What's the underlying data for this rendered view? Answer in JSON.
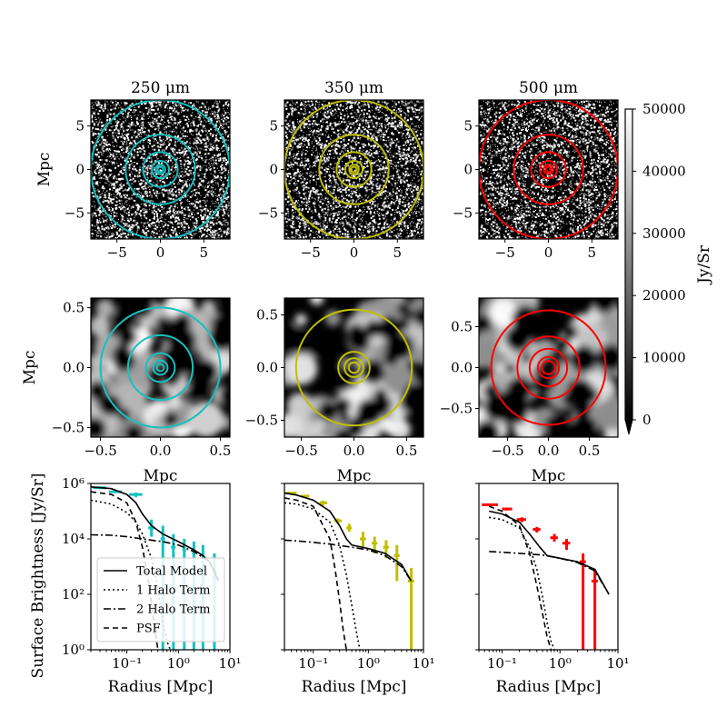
{
  "chart_data": [
    {
      "type": "heatmap",
      "id": "map-250-large",
      "title": "250 μm",
      "xlim": [
        -8,
        8
      ],
      "ylim": [
        -8,
        8
      ],
      "xticks": [
        -5,
        0,
        5
      ],
      "yticks": [
        -5,
        0,
        5
      ],
      "xtick_labels": [
        "−5",
        "0",
        "5"
      ],
      "ytick_labels": [
        "−5",
        "0",
        "5"
      ],
      "ylabel": "Mpc",
      "xlabel": "",
      "ring_color": "#17bfbf",
      "ring_radii_mpc": [
        0.3,
        0.55,
        1.0,
        2.0,
        4.0,
        8.0
      ],
      "texture": "noise-fine"
    },
    {
      "type": "heatmap",
      "id": "map-350-large",
      "title": "350 μm",
      "xlim": [
        -8,
        8
      ],
      "ylim": [
        -8,
        8
      ],
      "xticks": [
        -5,
        0,
        5
      ],
      "yticks": [
        -5,
        0,
        5
      ],
      "xtick_labels": [
        "−5",
        "0",
        "5"
      ],
      "ytick_labels": [
        "−5",
        "0",
        "5"
      ],
      "ylabel": "",
      "xlabel": "",
      "ring_color": "#bfbf00",
      "ring_radii_mpc": [
        0.3,
        0.55,
        1.0,
        2.0,
        4.0,
        8.0
      ],
      "texture": "noise-fine"
    },
    {
      "type": "heatmap",
      "id": "map-500-large",
      "title": "500 μm",
      "xlim": [
        -8,
        8
      ],
      "ylim": [
        -8,
        8
      ],
      "xticks": [
        -5,
        0,
        5
      ],
      "yticks": [
        -5,
        0,
        5
      ],
      "xtick_labels": [
        "−5",
        "0",
        "5"
      ],
      "ytick_labels": [
        "−5",
        "0",
        "5"
      ],
      "ylabel": "",
      "xlabel": "",
      "ring_color": "#ff0000",
      "ring_radii_mpc": [
        0.3,
        0.55,
        1.0,
        2.0,
        4.0,
        8.0
      ],
      "texture": "noise-fine"
    },
    {
      "type": "heatmap",
      "id": "map-250-zoom",
      "title": "",
      "xlim": [
        -0.58,
        0.58
      ],
      "ylim": [
        -0.58,
        0.58
      ],
      "xticks": [
        -0.5,
        0.0,
        0.5
      ],
      "yticks": [
        -0.5,
        0.0,
        0.5
      ],
      "xtick_labels": [
        "−0.5",
        "0.0",
        "0.5"
      ],
      "ytick_labels": [
        "−0.5",
        "0.0",
        "0.5"
      ],
      "ylabel": "Mpc",
      "xlabel": "Mpc",
      "ring_color": "#17bfbf",
      "ring_radii_mpc": [
        0.03,
        0.06,
        0.12,
        0.27,
        0.5
      ],
      "texture": "blobs"
    },
    {
      "type": "heatmap",
      "id": "map-350-zoom",
      "title": "",
      "xlim": [
        -0.66,
        0.66
      ],
      "ylim": [
        -0.66,
        0.66
      ],
      "xticks": [
        -0.5,
        0.0,
        0.5
      ],
      "yticks": [
        -0.5,
        0.0,
        0.5
      ],
      "xtick_labels": [
        "−0.5",
        "0.0",
        "0.5"
      ],
      "ytick_labels": [
        "−0.5",
        "0.0",
        "0.5"
      ],
      "ylabel": "",
      "xlabel": "Mpc",
      "ring_color": "#bfbf00",
      "ring_radii_mpc": [
        0.05,
        0.09,
        0.15,
        0.55
      ],
      "texture": "blobs"
    },
    {
      "type": "heatmap",
      "id": "map-500-zoom",
      "title": "",
      "xlim": [
        -0.85,
        0.85
      ],
      "ylim": [
        -0.85,
        0.85
      ],
      "xticks": [
        -0.5,
        0.0,
        0.5
      ],
      "yticks": [
        -0.5,
        0.0,
        0.5
      ],
      "xtick_labels": [
        "−0.5",
        "0.0",
        "0.5"
      ],
      "ytick_labels": [
        "−0.5",
        "0.0",
        "0.5"
      ],
      "ylabel": "",
      "xlabel": "Mpc",
      "ring_color": "#ff0000",
      "ring_radii_mpc": [
        0.08,
        0.13,
        0.23,
        0.38,
        0.7
      ],
      "texture": "blobs"
    },
    {
      "type": "line",
      "id": "profile-250",
      "xscale": "log",
      "yscale": "log",
      "xlim": [
        0.02,
        10
      ],
      "ylim": [
        1,
        1000000
      ],
      "xlabel": "Radius [Mpc]",
      "ylabel": "Surface Brightness [Jy/Sr]",
      "xticks": [
        0.1,
        1,
        10
      ],
      "xtick_labels": [
        "10⁻¹",
        "10⁰",
        "10¹"
      ],
      "yticks": [
        1,
        100,
        10000,
        1000000
      ],
      "ytick_labels": [
        "10⁰",
        "10²",
        "10⁴",
        "10⁶"
      ],
      "show_ytick_labels": true,
      "data_color": "#17bfbf",
      "data_points": [
        {
          "x": 0.03,
          "y": 700000,
          "xerr": [
            0.022,
            0.04
          ],
          "yerr": [
            650000,
            750000
          ]
        },
        {
          "x": 0.06,
          "y": 500000,
          "xerr": [
            0.045,
            0.08
          ],
          "yerr": [
            450000,
            560000
          ]
        },
        {
          "x": 0.15,
          "y": 400000,
          "xerr": [
            0.11,
            0.2
          ],
          "yerr": [
            320000,
            470000
          ]
        },
        {
          "x": 0.3,
          "y": 25000,
          "xerr": [
            0.26,
            0.35
          ],
          "yerr": [
            12000,
            50000
          ]
        },
        {
          "x": 0.5,
          "y": 10000,
          "xerr": [
            0.45,
            0.55
          ],
          "yerr": [
            1,
            30000
          ]
        },
        {
          "x": 0.8,
          "y": 5000,
          "xerr": [
            0.72,
            0.88
          ],
          "yerr": [
            1,
            15000
          ]
        },
        {
          "x": 1.3,
          "y": 4000,
          "xerr": [
            1.2,
            1.4
          ],
          "yerr": [
            1,
            10000
          ]
        },
        {
          "x": 2.0,
          "y": 3000,
          "xerr": [
            1.85,
            2.15
          ],
          "yerr": [
            1,
            8000
          ]
        },
        {
          "x": 3.0,
          "y": 2000,
          "xerr": [
            2.8,
            3.2
          ],
          "yerr": [
            1,
            6000
          ]
        },
        {
          "x": 5.0,
          "y": 1000,
          "xerr": [
            4.6,
            5.4
          ],
          "yerr": [
            1,
            3000
          ]
        }
      ],
      "series": [
        {
          "name": "Total Model",
          "dash": "solid",
          "x": [
            0.02,
            0.05,
            0.1,
            0.15,
            0.2,
            0.3,
            0.5,
            1,
            2,
            3,
            4,
            6
          ],
          "y": [
            750000,
            650000,
            400000,
            200000,
            80000,
            30000,
            15000,
            8000,
            4000,
            2500,
            1500,
            300
          ]
        },
        {
          "name": "1 Halo Term",
          "dash": "dotted",
          "x": [
            0.02,
            0.05,
            0.1,
            0.15,
            0.2,
            0.3,
            0.4,
            0.5,
            0.6,
            0.7
          ],
          "y": [
            250000,
            180000,
            90000,
            40000,
            15000,
            2000,
            150,
            10,
            2,
            1
          ]
        },
        {
          "name": "2 Halo Term",
          "dash": "dashdot",
          "x": [
            0.02,
            0.05,
            0.1,
            0.2,
            0.3,
            0.5,
            1,
            2,
            4,
            6
          ],
          "y": [
            14000,
            13500,
            12000,
            10000,
            9000,
            8000,
            6000,
            3500,
            1500,
            400
          ]
        },
        {
          "name": "PSF",
          "dash": "dashed",
          "x": [
            0.02,
            0.05,
            0.1,
            0.15,
            0.2,
            0.25,
            0.3,
            0.35,
            0.4
          ],
          "y": [
            500000,
            400000,
            200000,
            40000,
            5000,
            500,
            50,
            5,
            1
          ]
        }
      ],
      "legend": [
        "Total Model",
        "1 Halo Term",
        "2 Halo Term",
        "PSF"
      ],
      "legend_position": "lower-left"
    },
    {
      "type": "line",
      "id": "profile-350",
      "xscale": "log",
      "yscale": "log",
      "xlim": [
        0.03,
        10
      ],
      "ylim": [
        1,
        1000000
      ],
      "xlabel": "Radius [Mpc]",
      "ylabel": "",
      "xticks": [
        0.1,
        1,
        10
      ],
      "xtick_labels": [
        "10⁻¹",
        "10⁰",
        "10¹"
      ],
      "yticks": [
        1,
        100,
        10000,
        1000000
      ],
      "ytick_labels": [
        "10⁰",
        "10²",
        "10⁴",
        "10⁶"
      ],
      "show_ytick_labels": false,
      "data_color": "#bfbf00",
      "data_points": [
        {
          "x": 0.04,
          "y": 450000,
          "xerr": [
            0.032,
            0.05
          ],
          "yerr": [
            420000,
            480000
          ]
        },
        {
          "x": 0.07,
          "y": 350000,
          "xerr": [
            0.06,
            0.085
          ],
          "yerr": [
            320000,
            380000
          ]
        },
        {
          "x": 0.15,
          "y": 200000,
          "xerr": [
            0.13,
            0.18
          ],
          "yerr": [
            160000,
            240000
          ]
        },
        {
          "x": 0.28,
          "y": 45000,
          "xerr": [
            0.24,
            0.33
          ],
          "yerr": [
            35000,
            55000
          ]
        },
        {
          "x": 0.45,
          "y": 25000,
          "xerr": [
            0.4,
            0.5
          ],
          "yerr": [
            18000,
            35000
          ]
        },
        {
          "x": 0.8,
          "y": 10000,
          "xerr": [
            0.7,
            0.9
          ],
          "yerr": [
            5000,
            18000
          ]
        },
        {
          "x": 1.3,
          "y": 7000,
          "xerr": [
            1.15,
            1.45
          ],
          "yerr": [
            3000,
            12000
          ]
        },
        {
          "x": 2.1,
          "y": 5000,
          "xerr": [
            1.85,
            2.35
          ],
          "yerr": [
            2000,
            9000
          ]
        },
        {
          "x": 3.3,
          "y": 2500,
          "xerr": [
            2.9,
            3.7
          ],
          "yerr": [
            300,
            6000
          ]
        },
        {
          "x": 6.0,
          "y": 300,
          "xerr": [
            5.2,
            6.8
          ],
          "yerr": [
            1,
            900
          ]
        }
      ],
      "series": [
        {
          "name": "Total Model",
          "dash": "solid",
          "x": [
            0.03,
            0.05,
            0.1,
            0.2,
            0.3,
            0.4,
            0.5,
            1,
            2,
            4,
            6
          ],
          "y": [
            450000,
            380000,
            250000,
            100000,
            30000,
            10000,
            6000,
            4500,
            3000,
            1200,
            300
          ]
        },
        {
          "name": "1 Halo Term",
          "dash": "dotted",
          "x": [
            0.03,
            0.05,
            0.1,
            0.2,
            0.3,
            0.4,
            0.5,
            0.6,
            0.7
          ],
          "y": [
            200000,
            180000,
            120000,
            40000,
            6000,
            500,
            40,
            5,
            1
          ]
        },
        {
          "name": "2 Halo Term",
          "dash": "dashdot",
          "x": [
            0.03,
            0.05,
            0.1,
            0.2,
            0.5,
            1,
            2,
            4,
            6
          ],
          "y": [
            9000,
            8500,
            7500,
            6500,
            5000,
            4000,
            2500,
            1000,
            300
          ]
        },
        {
          "name": "PSF",
          "dash": "dashed",
          "x": [
            0.03,
            0.05,
            0.1,
            0.2,
            0.25,
            0.3,
            0.35,
            0.4
          ],
          "y": [
            300000,
            250000,
            150000,
            10000,
            800,
            60,
            5,
            1
          ]
        }
      ]
    },
    {
      "type": "line",
      "id": "profile-500",
      "xscale": "log",
      "yscale": "log",
      "xlim": [
        0.04,
        10
      ],
      "ylim": [
        1,
        1000000
      ],
      "xlabel": "Radius [Mpc]",
      "ylabel": "",
      "xticks": [
        0.1,
        1,
        10
      ],
      "xtick_labels": [
        "10⁻¹",
        "10⁰",
        "10¹"
      ],
      "yticks": [
        1,
        100,
        10000,
        1000000
      ],
      "ytick_labels": [
        "10⁰",
        "10²",
        "10⁴",
        "10⁶"
      ],
      "show_ytick_labels": false,
      "data_color": "#ff0000",
      "data_points": [
        {
          "x": 0.06,
          "y": 170000,
          "xerr": [
            0.045,
            0.085
          ],
          "yerr": [
            160000,
            180000
          ]
        },
        {
          "x": 0.12,
          "y": 120000,
          "xerr": [
            0.1,
            0.15
          ],
          "yerr": [
            105000,
            135000
          ]
        },
        {
          "x": 0.22,
          "y": 50000,
          "xerr": [
            0.18,
            0.26
          ],
          "yerr": [
            40000,
            60000
          ]
        },
        {
          "x": 0.4,
          "y": 22000,
          "xerr": [
            0.34,
            0.46
          ],
          "yerr": [
            17000,
            27000
          ]
        },
        {
          "x": 0.8,
          "y": 11000,
          "xerr": [
            0.68,
            0.92
          ],
          "yerr": [
            8000,
            15000
          ]
        },
        {
          "x": 1.3,
          "y": 7000,
          "xerr": [
            1.1,
            1.5
          ],
          "yerr": [
            4000,
            10000
          ]
        },
        {
          "x": 2.5,
          "y": 1500,
          "xerr": [
            2.2,
            2.8
          ],
          "yerr": [
            1,
            3000
          ]
        },
        {
          "x": 4.0,
          "y": 300,
          "xerr": [
            3.5,
            4.5
          ],
          "yerr": [
            1,
            800
          ]
        }
      ],
      "series": [
        {
          "name": "Total Model",
          "dash": "solid",
          "x": [
            0.06,
            0.1,
            0.2,
            0.3,
            0.45,
            0.6,
            1,
            2,
            4,
            7
          ],
          "y": [
            100000,
            80000,
            40000,
            15000,
            5000,
            2500,
            2000,
            1500,
            800,
            100
          ]
        },
        {
          "name": "1 Halo Term",
          "dash": "dotted",
          "x": [
            0.06,
            0.1,
            0.2,
            0.3,
            0.4,
            0.5,
            0.6,
            0.7,
            0.8
          ],
          "y": [
            60000,
            50000,
            25000,
            5000,
            800,
            80,
            10,
            2,
            1
          ]
        },
        {
          "name": "2 Halo Term",
          "dash": "dashdot",
          "x": [
            0.06,
            0.1,
            0.2,
            0.5,
            1,
            2,
            4,
            7
          ],
          "y": [
            3500,
            3300,
            3000,
            2600,
            2000,
            1400,
            700,
            100
          ]
        },
        {
          "name": "PSF",
          "dash": "dashed",
          "x": [
            0.06,
            0.1,
            0.2,
            0.3,
            0.4,
            0.5,
            0.6,
            0.7
          ],
          "y": [
            150000,
            100000,
            30000,
            3000,
            200,
            20,
            3,
            1
          ]
        }
      ]
    },
    {
      "type": "colorbar",
      "id": "colorbar",
      "label": "Jy/Sr",
      "range": [
        0,
        50000
      ],
      "ticks": [
        0,
        10000,
        20000,
        30000,
        40000,
        50000
      ],
      "tick_labels": [
        "0",
        "10000",
        "20000",
        "30000",
        "40000",
        "50000"
      ],
      "colormap": "gray",
      "extend": "min"
    }
  ]
}
